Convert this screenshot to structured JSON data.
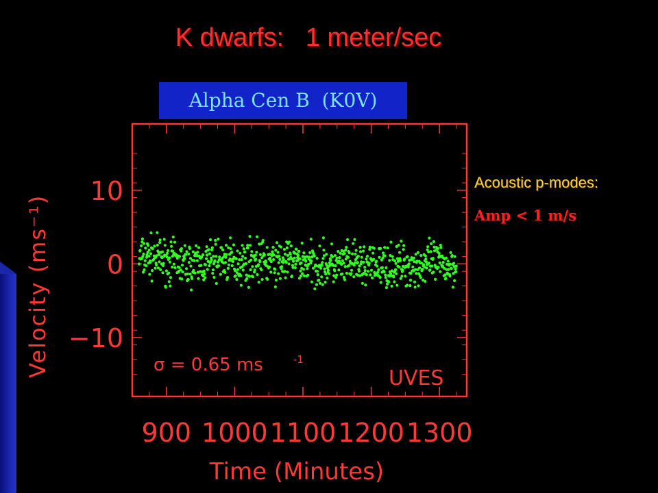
{
  "slide": {
    "title": "K dwarfs:   1 meter/sec",
    "subtitle": "Alpha Cen B  (K0V)",
    "side_label": "Acoustic p-modes:",
    "side_value": "Amp < 1 m/s"
  },
  "colors": {
    "background": "#000000",
    "title": "#ff3030",
    "axis_text": "#ff3838",
    "points": "#33ff22",
    "subtitle_box": "#1224c8",
    "subtitle_text": "#7fe0f0",
    "side_label": "#ffd23c",
    "side_value": "#ff2020"
  },
  "chart_data": {
    "type": "scatter",
    "ylabel": "Velocity (ms⁻¹)",
    "xlabel": "Time (Minutes)",
    "xlim": [
      850,
      1340
    ],
    "ylim": [
      -18,
      19
    ],
    "x_ticks": [
      900,
      1000,
      1100,
      1200,
      1300
    ],
    "y_ticks": [
      10,
      0,
      -10
    ],
    "x_tick_labels": [
      "900",
      "1000",
      "1100",
      "1200",
      "1300"
    ],
    "y_tick_labels": [
      "10",
      "0",
      "−10"
    ],
    "annotation_sigma": "σ  =  0.65  ms",
    "annotation_sigma_exp": "-1",
    "annotation_instrument": "UVES",
    "series": [
      {
        "x": [
          860,
          875,
          890,
          905,
          920,
          935,
          950,
          965,
          980,
          995,
          1010,
          1025,
          1040,
          1055,
          1070,
          1085,
          1100,
          1115,
          1130,
          1145,
          1160,
          1175,
          1190,
          1205,
          1220,
          1235,
          1250,
          1265,
          1280,
          1295,
          1310,
          1325
        ],
        "y": [
          0.8,
          1.0,
          0.7,
          0.3,
          0.1,
          -0.1,
          0.0,
          0.4,
          0.6,
          0.3,
          0.2,
          0.5,
          0.4,
          0.1,
          0.3,
          0.5,
          0.2,
          0.0,
          -0.1,
          -0.3,
          -0.2,
          0.0,
          -0.2,
          -0.3,
          -0.4,
          -0.2,
          -0.1,
          -0.3,
          -0.1,
          0.1,
          -0.2,
          -0.1
        ],
        "scatter": 1.4
      }
    ]
  }
}
